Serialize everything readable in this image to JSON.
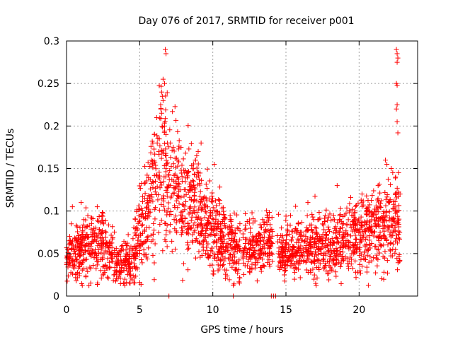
{
  "chart_data": {
    "type": "scatter",
    "title": "Day 076 of 2017, SRMTID for receiver p001",
    "xlabel": "GPS time / hours",
    "ylabel": "SRMTID / TECUs",
    "xlim": [
      0,
      24
    ],
    "ylim": [
      0,
      0.3
    ],
    "x_ticks": [
      0,
      5,
      10,
      15,
      20
    ],
    "x_tick_labels": [
      "0",
      "5",
      "10",
      "15",
      "20"
    ],
    "y_ticks": [
      0,
      0.05,
      0.1,
      0.15,
      0.2,
      0.25,
      0.3
    ],
    "y_tick_labels": [
      "0",
      "0.05",
      "0.1",
      "0.15",
      "0.2",
      "0.25",
      "0.3"
    ],
    "grid": true,
    "marker": "plus",
    "color": "#ff0000",
    "trend": [
      [
        0.0,
        0.045
      ],
      [
        0.5,
        0.05
      ],
      [
        1.0,
        0.055
      ],
      [
        1.5,
        0.06
      ],
      [
        2.0,
        0.065
      ],
      [
        2.5,
        0.06
      ],
      [
        3.0,
        0.05
      ],
      [
        3.5,
        0.04
      ],
      [
        4.0,
        0.035
      ],
      [
        4.5,
        0.045
      ],
      [
        5.0,
        0.07
      ],
      [
        5.5,
        0.1
      ],
      [
        6.0,
        0.13
      ],
      [
        6.5,
        0.15
      ],
      [
        7.0,
        0.14
      ],
      [
        7.5,
        0.12
      ],
      [
        8.0,
        0.11
      ],
      [
        8.5,
        0.1
      ],
      [
        9.0,
        0.1
      ],
      [
        9.5,
        0.09
      ],
      [
        10.0,
        0.08
      ],
      [
        10.5,
        0.07
      ],
      [
        11.0,
        0.06
      ],
      [
        11.5,
        0.055
      ],
      [
        12.0,
        0.06
      ],
      [
        12.5,
        0.06
      ],
      [
        13.0,
        0.06
      ],
      [
        13.5,
        0.065
      ],
      [
        14.0,
        0.065
      ],
      [
        14.5,
        0.05
      ],
      [
        15.0,
        0.05
      ],
      [
        15.5,
        0.055
      ],
      [
        16.0,
        0.055
      ],
      [
        16.5,
        0.055
      ],
      [
        17.0,
        0.06
      ],
      [
        17.5,
        0.06
      ],
      [
        18.0,
        0.06
      ],
      [
        18.5,
        0.06
      ],
      [
        19.0,
        0.065
      ],
      [
        19.5,
        0.065
      ],
      [
        20.0,
        0.07
      ],
      [
        20.5,
        0.075
      ],
      [
        21.0,
        0.075
      ],
      [
        21.5,
        0.08
      ],
      [
        22.0,
        0.085
      ],
      [
        22.5,
        0.08
      ],
      [
        22.8,
        0.075
      ]
    ],
    "spread": [
      [
        0.0,
        0.015
      ],
      [
        2.0,
        0.02
      ],
      [
        4.0,
        0.015
      ],
      [
        5.5,
        0.03
      ],
      [
        6.5,
        0.045
      ],
      [
        8.0,
        0.035
      ],
      [
        9.5,
        0.03
      ],
      [
        11.0,
        0.02
      ],
      [
        13.0,
        0.018
      ],
      [
        14.5,
        0.015
      ],
      [
        16.0,
        0.018
      ],
      [
        18.0,
        0.02
      ],
      [
        20.0,
        0.02
      ],
      [
        21.5,
        0.025
      ],
      [
        22.8,
        0.025
      ]
    ],
    "highlight_points": [
      [
        6.75,
        0.29
      ],
      [
        6.8,
        0.285
      ],
      [
        6.6,
        0.255
      ],
      [
        6.7,
        0.25
      ],
      [
        6.5,
        0.24
      ],
      [
        6.55,
        0.235
      ],
      [
        6.6,
        0.23
      ],
      [
        6.45,
        0.22
      ],
      [
        6.5,
        0.215
      ],
      [
        6.7,
        0.2
      ],
      [
        6.8,
        0.19
      ],
      [
        6.9,
        0.18
      ],
      [
        7.1,
        0.18
      ],
      [
        7.3,
        0.175
      ],
      [
        5.9,
        0.18
      ],
      [
        6.0,
        0.19
      ],
      [
        6.2,
        0.18
      ],
      [
        6.3,
        0.17
      ],
      [
        9.2,
        0.18
      ],
      [
        9.0,
        0.17
      ],
      [
        8.8,
        0.16
      ],
      [
        10.1,
        0.155
      ],
      [
        8.9,
        0.165
      ],
      [
        7.6,
        0.16
      ],
      [
        22.55,
        0.29
      ],
      [
        22.6,
        0.285
      ],
      [
        22.65,
        0.28
      ],
      [
        22.6,
        0.275
      ],
      [
        22.55,
        0.25
      ],
      [
        22.6,
        0.248
      ],
      [
        22.6,
        0.225
      ],
      [
        22.55,
        0.22
      ],
      [
        22.6,
        0.205
      ],
      [
        22.65,
        0.192
      ],
      [
        21.8,
        0.16
      ],
      [
        21.9,
        0.155
      ],
      [
        22.2,
        0.15
      ],
      [
        22.3,
        0.145
      ],
      [
        22.7,
        0.145
      ],
      [
        22.5,
        0.14
      ],
      [
        21.3,
        0.13
      ],
      [
        22.8,
        0.12
      ],
      [
        20.2,
        0.12
      ],
      [
        18.5,
        0.13
      ],
      [
        16.5,
        0.11
      ],
      [
        19.6,
        0.095
      ],
      [
        1.0,
        0.11
      ],
      [
        0.4,
        0.105
      ],
      [
        2.1,
        0.105
      ]
    ],
    "zero_points": [
      [
        7.0,
        0.0
      ],
      [
        11.4,
        0.0
      ],
      [
        14.0,
        0.0
      ],
      [
        14.15,
        0.0
      ],
      [
        14.3,
        0.0
      ]
    ],
    "point_count": 2400,
    "gaps": [
      [
        11.9,
        12.05
      ],
      [
        14.1,
        14.4
      ]
    ]
  }
}
